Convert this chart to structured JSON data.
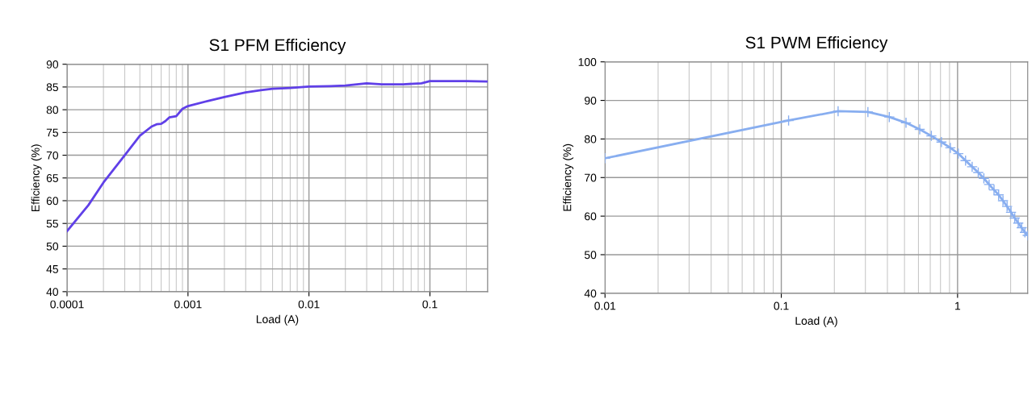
{
  "chart_data": [
    {
      "type": "line",
      "title": "S1 PFM Efficiency",
      "xlabel": "Load (A)",
      "ylabel": "Efficiency (%)",
      "log": "x",
      "grid": true,
      "marker": "none",
      "line_style": "solid",
      "xlim": [
        0.0001,
        0.3
      ],
      "xticks": [
        0.0001,
        0.001,
        0.01,
        0.1
      ],
      "ylim": [
        40,
        90
      ],
      "yticks": [
        40,
        45,
        50,
        55,
        60,
        65,
        70,
        75,
        80,
        85,
        90
      ],
      "x": [
        0.0001,
        0.00015,
        0.0002,
        0.0003,
        0.0004,
        0.0005,
        0.00055,
        0.0006,
        0.00065,
        0.0007,
        0.0008,
        0.0009,
        0.001,
        0.0015,
        0.002,
        0.003,
        0.004,
        0.005,
        0.007,
        0.01,
        0.015,
        0.02,
        0.03,
        0.04,
        0.06,
        0.085,
        0.1,
        0.2,
        0.3
      ],
      "series": [
        {
          "color": "#6040e8",
          "values": [
            53.3,
            59,
            64,
            70,
            74.3,
            76.3,
            76.8,
            76.9,
            77.5,
            78.3,
            78.6,
            80.2,
            80.8,
            82,
            82.8,
            83.8,
            84.3,
            84.6,
            84.8,
            85.1,
            85.2,
            85.3,
            85.8,
            85.6,
            85.6,
            85.8,
            86.3,
            86.3,
            86.2
          ]
        }
      ]
    },
    {
      "type": "line",
      "title": "S1 PWM Efficiency",
      "xlabel": "Load (A)",
      "ylabel": "Efficiency (%)",
      "log": "x",
      "grid": true,
      "marker": "cross",
      "line_style": "solid",
      "xlim": [
        0.01,
        2.5
      ],
      "xticks": [
        0.01,
        0.1,
        1
      ],
      "ylim": [
        40,
        100
      ],
      "yticks": [
        40,
        50,
        60,
        70,
        80,
        90,
        100
      ],
      "x": [
        0.01,
        0.11,
        0.21,
        0.31,
        0.41,
        0.51,
        0.61,
        0.71,
        0.81,
        0.91,
        1.01,
        1.11,
        1.21,
        1.31,
        1.41,
        1.51,
        1.61,
        1.71,
        1.81,
        1.91,
        2.01,
        2.11,
        2.21,
        2.31,
        2.41,
        2.5
      ],
      "series": [
        {
          "color": "#88aef0",
          "values": [
            75,
            84.8,
            87.2,
            87,
            85.7,
            84.2,
            82.5,
            80.8,
            79.2,
            77.7,
            76.2,
            74.4,
            72.8,
            71.3,
            69.8,
            68.2,
            66.8,
            65.5,
            64,
            62.5,
            61,
            59.5,
            58.2,
            57,
            55.8,
            55
          ]
        }
      ]
    }
  ]
}
